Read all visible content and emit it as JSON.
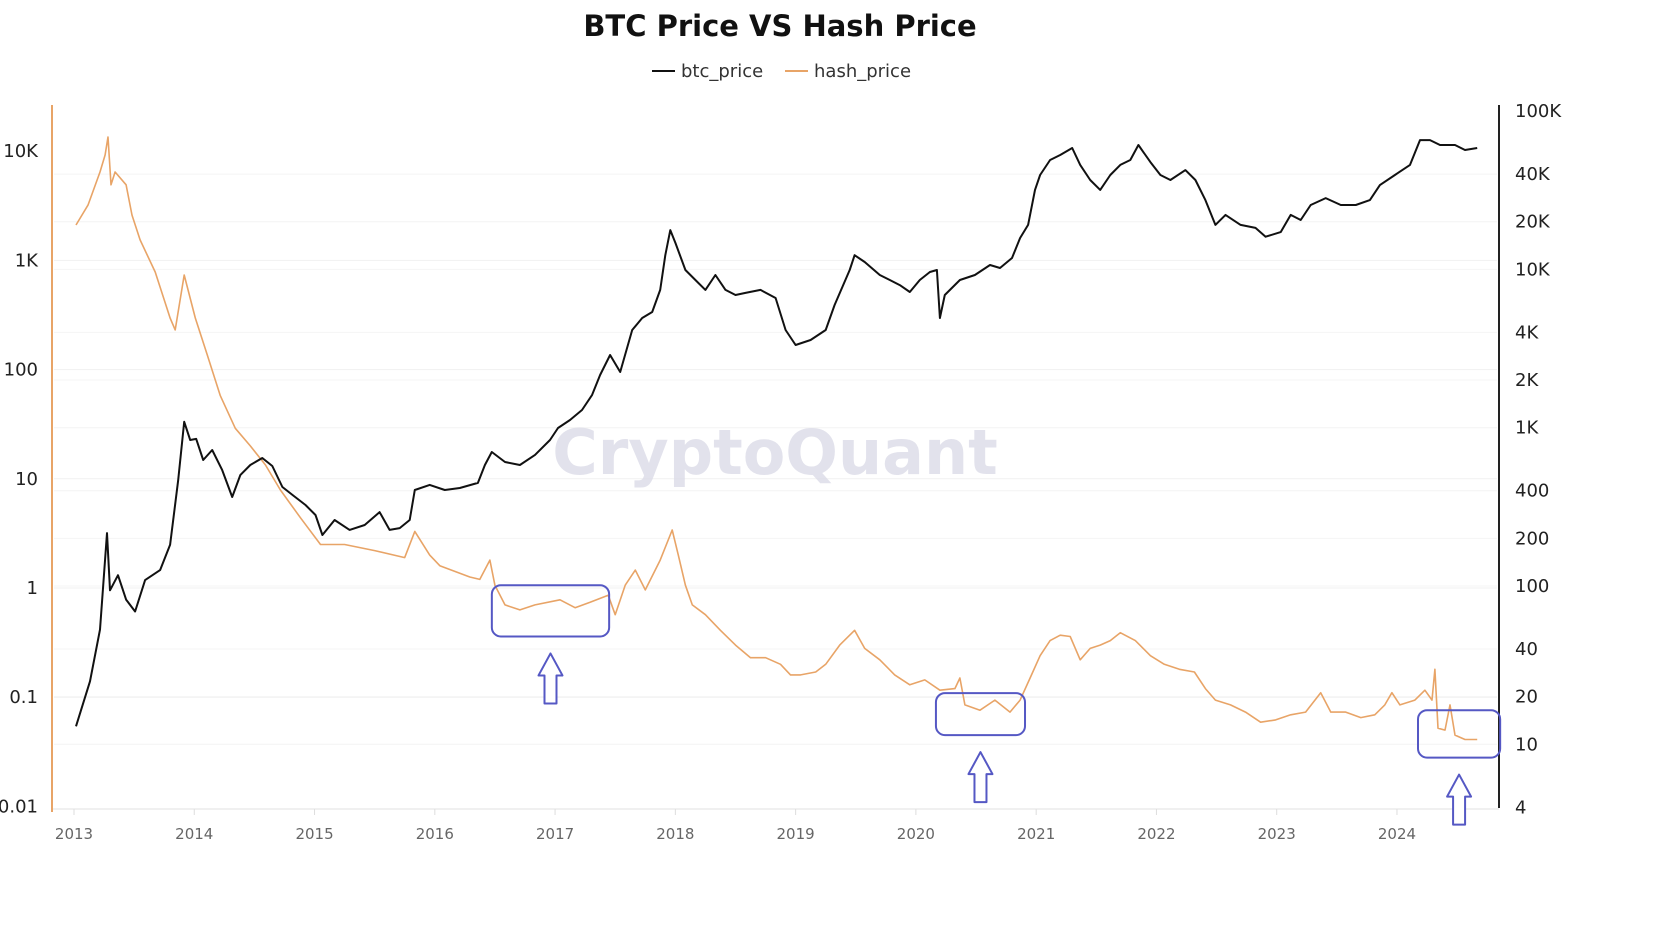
{
  "chart_data": {
    "type": "line",
    "title": "BTC Price VS Hash Price",
    "watermark": "CryptoQuant",
    "legend_position": "top-center",
    "grid": true,
    "x_ticks": [
      "2013",
      "2014",
      "2015",
      "2016",
      "2017",
      "2018",
      "2019",
      "2020",
      "2021",
      "2022",
      "2023",
      "2024"
    ],
    "left_axis": {
      "series": "hash_price",
      "scale": "log",
      "range": [
        0.01,
        27000
      ],
      "color": "#e8a467",
      "ticks": [
        {
          "v": 10000,
          "label": "10K"
        },
        {
          "v": 1000,
          "label": "1K"
        },
        {
          "v": 100,
          "label": "100"
        },
        {
          "v": 10,
          "label": "10"
        },
        {
          "v": 1,
          "label": "1"
        },
        {
          "v": 0.1,
          "label": "0.1"
        },
        {
          "v": 0.01,
          "label": "0.01"
        }
      ]
    },
    "right_axis": {
      "series": "btc_price",
      "scale": "log",
      "range": [
        4,
        100000
      ],
      "color": "#111111",
      "ticks": [
        {
          "v": 100000,
          "label": "100K"
        },
        {
          "v": 40000,
          "label": "40K"
        },
        {
          "v": 20000,
          "label": "20K"
        },
        {
          "v": 10000,
          "label": "10K"
        },
        {
          "v": 4000,
          "label": "4K"
        },
        {
          "v": 2000,
          "label": "2K"
        },
        {
          "v": 1000,
          "label": "1K"
        },
        {
          "v": 400,
          "label": "400"
        },
        {
          "v": 200,
          "label": "200"
        },
        {
          "v": 100,
          "label": "100"
        },
        {
          "v": 40,
          "label": "40"
        },
        {
          "v": 20,
          "label": "20"
        },
        {
          "v": 10,
          "label": "10"
        },
        {
          "v": 4,
          "label": "4"
        }
      ]
    },
    "series": [
      {
        "name": "btc_price",
        "axis": "right",
        "color": "#111111",
        "points": [
          [
            "2013-01-07",
            13
          ],
          [
            "2013-02-19",
            25
          ],
          [
            "2013-03-19",
            53
          ],
          [
            "2013-04-10",
            216
          ],
          [
            "2013-04-19",
            94
          ],
          [
            "2013-05-13",
            117
          ],
          [
            "2013-06-07",
            82
          ],
          [
            "2013-07-04",
            69
          ],
          [
            "2013-08-04",
            109
          ],
          [
            "2013-09-19",
            126
          ],
          [
            "2013-10-19",
            182
          ],
          [
            "2013-11-13",
            467
          ],
          [
            "2013-12-01",
            1090
          ],
          [
            "2013-12-19",
            836
          ],
          [
            "2014-01-07",
            850
          ],
          [
            "2014-01-28",
            625
          ],
          [
            "2014-02-25",
            723
          ],
          [
            "2014-03-25",
            540
          ],
          [
            "2014-04-25",
            365
          ],
          [
            "2014-05-19",
            502
          ],
          [
            "2014-06-19",
            581
          ],
          [
            "2014-07-25",
            644
          ],
          [
            "2014-08-25",
            573
          ],
          [
            "2014-09-25",
            422
          ],
          [
            "2014-10-25",
            376
          ],
          [
            "2014-12-04",
            325
          ],
          [
            "2015-01-04",
            281
          ],
          [
            "2015-01-25",
            210
          ],
          [
            "2015-03-01",
            261
          ],
          [
            "2015-04-16",
            226
          ],
          [
            "2015-06-01",
            243
          ],
          [
            "2015-07-16",
            293
          ],
          [
            "2015-08-16",
            226
          ],
          [
            "2015-09-16",
            232
          ],
          [
            "2015-10-16",
            261
          ],
          [
            "2015-11-01",
            404
          ],
          [
            "2015-12-16",
            435
          ],
          [
            "2016-02-01",
            404
          ],
          [
            "2016-03-16",
            416
          ],
          [
            "2016-05-10",
            448
          ],
          [
            "2016-06-01",
            581
          ],
          [
            "2016-06-22",
            702
          ],
          [
            "2016-08-01",
            607
          ],
          [
            "2016-09-16",
            581
          ],
          [
            "2016-11-01",
            673
          ],
          [
            "2016-12-16",
            836
          ],
          [
            "2017-01-10",
            995
          ],
          [
            "2017-02-16",
            1119
          ],
          [
            "2017-03-22",
            1294
          ],
          [
            "2017-04-22",
            1611
          ],
          [
            "2017-05-16",
            2153
          ],
          [
            "2017-06-16",
            2877
          ],
          [
            "2017-07-16",
            2248
          ],
          [
            "2017-08-22",
            4140
          ],
          [
            "2017-09-22",
            4930
          ],
          [
            "2017-10-22",
            5380
          ],
          [
            "2017-11-16",
            7420
          ],
          [
            "2017-12-01",
            12300
          ],
          [
            "2017-12-16",
            17700
          ],
          [
            "2018-01-01",
            14700
          ],
          [
            "2018-02-01",
            9910
          ],
          [
            "2018-03-01",
            8570
          ],
          [
            "2018-04-01",
            7420
          ],
          [
            "2018-05-01",
            9220
          ],
          [
            "2018-06-01",
            7420
          ],
          [
            "2018-07-01",
            6890
          ],
          [
            "2018-08-01",
            7100
          ],
          [
            "2018-09-16",
            7420
          ],
          [
            "2018-11-01",
            6600
          ],
          [
            "2018-12-01",
            4140
          ],
          [
            "2019-01-01",
            3330
          ],
          [
            "2019-02-16",
            3580
          ],
          [
            "2019-04-01",
            4140
          ],
          [
            "2019-04-28",
            5960
          ],
          [
            "2019-06-13",
            9910
          ],
          [
            "2019-06-28",
            12300
          ],
          [
            "2019-07-28",
            11140
          ],
          [
            "2019-09-13",
            9220
          ],
          [
            "2019-10-13",
            8570
          ],
          [
            "2019-11-13",
            7960
          ],
          [
            "2019-12-13",
            7200
          ],
          [
            "2020-01-13",
            8570
          ],
          [
            "2020-02-13",
            9630
          ],
          [
            "2020-03-04",
            9910
          ],
          [
            "2020-03-13",
            4930
          ],
          [
            "2020-03-28",
            6890
          ],
          [
            "2020-05-13",
            8570
          ],
          [
            "2020-06-28",
            9220
          ],
          [
            "2020-08-13",
            10660
          ],
          [
            "2020-09-13",
            10200
          ],
          [
            "2020-10-19",
            11800
          ],
          [
            "2020-11-13",
            15800
          ],
          [
            "2020-12-07",
            19100
          ],
          [
            "2020-12-28",
            31800
          ],
          [
            "2021-01-13",
            39500
          ],
          [
            "2021-02-13",
            49100
          ],
          [
            "2021-03-13",
            52800
          ],
          [
            "2021-04-19",
            58500
          ],
          [
            "2021-05-13",
            45700
          ],
          [
            "2021-06-13",
            36700
          ],
          [
            "2021-07-13",
            31800
          ],
          [
            "2021-08-13",
            39500
          ],
          [
            "2021-09-13",
            45700
          ],
          [
            "2021-10-13",
            49100
          ],
          [
            "2021-11-07",
            61100
          ],
          [
            "2021-12-13",
            47600
          ],
          [
            "2022-01-13",
            39500
          ],
          [
            "2022-02-13",
            36700
          ],
          [
            "2022-03-28",
            42400
          ],
          [
            "2022-04-28",
            36700
          ],
          [
            "2022-05-28",
            27400
          ],
          [
            "2022-06-28",
            19100
          ],
          [
            "2022-07-28",
            22100
          ],
          [
            "2022-09-13",
            19100
          ],
          [
            "2022-10-28",
            18300
          ],
          [
            "2022-11-28",
            16100
          ],
          [
            "2023-01-13",
            17200
          ],
          [
            "2023-02-13",
            22100
          ],
          [
            "2023-03-13",
            20500
          ],
          [
            "2023-04-13",
            25500
          ],
          [
            "2023-05-28",
            28200
          ],
          [
            "2023-07-13",
            25500
          ],
          [
            "2023-08-28",
            25500
          ],
          [
            "2023-10-10",
            27400
          ],
          [
            "2023-11-10",
            34100
          ],
          [
            "2023-12-25",
            39500
          ],
          [
            "2024-02-10",
            45700
          ],
          [
            "2024-03-10",
            65600
          ],
          [
            "2024-04-10",
            65600
          ],
          [
            "2024-05-10",
            61100
          ],
          [
            "2024-06-25",
            61100
          ],
          [
            "2024-07-25",
            56800
          ],
          [
            "2024-09-01",
            58500
          ]
        ]
      },
      {
        "name": "hash_price",
        "axis": "left",
        "color": "#e8a467",
        "points": [
          [
            "2013-01-07",
            2110
          ],
          [
            "2013-02-13",
            3210
          ],
          [
            "2013-03-19",
            6450
          ],
          [
            "2013-04-04",
            9230
          ],
          [
            "2013-04-13",
            13500
          ],
          [
            "2013-04-22",
            4920
          ],
          [
            "2013-05-04",
            6450
          ],
          [
            "2013-06-07",
            4920
          ],
          [
            "2013-06-25",
            2600
          ],
          [
            "2013-07-19",
            1540
          ],
          [
            "2013-09-04",
            783
          ],
          [
            "2013-10-19",
            297
          ],
          [
            "2013-11-04",
            231
          ],
          [
            "2013-12-01",
            735
          ],
          [
            "2014-01-04",
            297
          ],
          [
            "2014-02-10",
            136
          ],
          [
            "2014-03-19",
            58
          ],
          [
            "2014-05-04",
            29
          ],
          [
            "2014-06-19",
            20
          ],
          [
            "2014-08-04",
            13.4
          ],
          [
            "2014-09-19",
            7.9
          ],
          [
            "2014-11-19",
            4.4
          ],
          [
            "2015-01-19",
            2.5
          ],
          [
            "2015-04-01",
            2.5
          ],
          [
            "2015-07-01",
            2.2
          ],
          [
            "2015-10-01",
            1.9
          ],
          [
            "2015-11-01",
            3.3
          ],
          [
            "2015-12-16",
            2.0
          ],
          [
            "2016-01-16",
            1.6
          ],
          [
            "2016-04-16",
            1.26
          ],
          [
            "2016-05-16",
            1.2
          ],
          [
            "2016-06-16",
            1.8
          ],
          [
            "2016-07-01",
            1.06
          ],
          [
            "2016-08-01",
            0.7
          ],
          [
            "2016-09-16",
            0.63
          ],
          [
            "2016-11-01",
            0.7
          ],
          [
            "2017-01-16",
            0.78
          ],
          [
            "2017-03-01",
            0.66
          ],
          [
            "2017-04-16",
            0.74
          ],
          [
            "2017-06-10",
            0.86
          ],
          [
            "2017-07-01",
            0.57
          ],
          [
            "2017-08-01",
            1.06
          ],
          [
            "2017-09-01",
            1.46
          ],
          [
            "2017-10-01",
            0.96
          ],
          [
            "2017-11-16",
            1.8
          ],
          [
            "2017-12-22",
            3.4
          ],
          [
            "2018-01-10",
            2.0
          ],
          [
            "2018-02-01",
            1.06
          ],
          [
            "2018-02-22",
            0.7
          ],
          [
            "2018-04-01",
            0.57
          ],
          [
            "2018-05-16",
            0.41
          ],
          [
            "2018-07-01",
            0.3
          ],
          [
            "2018-08-16",
            0.23
          ],
          [
            "2018-10-01",
            0.23
          ],
          [
            "2018-11-16",
            0.2
          ],
          [
            "2018-12-16",
            0.16
          ],
          [
            "2019-01-16",
            0.16
          ],
          [
            "2019-03-01",
            0.17
          ],
          [
            "2019-04-01",
            0.2
          ],
          [
            "2019-05-13",
            0.3
          ],
          [
            "2019-06-28",
            0.41
          ],
          [
            "2019-07-28",
            0.28
          ],
          [
            "2019-09-13",
            0.22
          ],
          [
            "2019-10-28",
            0.16
          ],
          [
            "2019-12-13",
            0.13
          ],
          [
            "2020-01-28",
            0.144
          ],
          [
            "2020-03-13",
            0.116
          ],
          [
            "2020-04-28",
            0.12
          ],
          [
            "2020-05-13",
            0.15
          ],
          [
            "2020-05-28",
            0.085
          ],
          [
            "2020-07-13",
            0.076
          ],
          [
            "2020-08-28",
            0.094
          ],
          [
            "2020-10-13",
            0.073
          ],
          [
            "2020-11-13",
            0.094
          ],
          [
            "2020-12-13",
            0.15
          ],
          [
            "2021-01-13",
            0.24
          ],
          [
            "2021-02-13",
            0.33
          ],
          [
            "2021-03-13",
            0.37
          ],
          [
            "2021-04-13",
            0.36
          ],
          [
            "2021-05-13",
            0.22
          ],
          [
            "2021-06-13",
            0.28
          ],
          [
            "2021-07-13",
            0.3
          ],
          [
            "2021-08-13",
            0.33
          ],
          [
            "2021-09-13",
            0.39
          ],
          [
            "2021-10-28",
            0.33
          ],
          [
            "2021-12-13",
            0.24
          ],
          [
            "2022-01-25",
            0.2
          ],
          [
            "2022-03-10",
            0.18
          ],
          [
            "2022-04-25",
            0.17
          ],
          [
            "2022-05-28",
            0.12
          ],
          [
            "2022-06-28",
            0.094
          ],
          [
            "2022-08-13",
            0.085
          ],
          [
            "2022-09-28",
            0.073
          ],
          [
            "2022-11-13",
            0.059
          ],
          [
            "2022-12-28",
            0.062
          ],
          [
            "2023-02-13",
            0.069
          ],
          [
            "2023-03-28",
            0.073
          ],
          [
            "2023-05-13",
            0.11
          ],
          [
            "2023-06-13",
            0.073
          ],
          [
            "2023-07-28",
            0.073
          ],
          [
            "2023-09-13",
            0.065
          ],
          [
            "2023-10-25",
            0.069
          ],
          [
            "2023-11-25",
            0.085
          ],
          [
            "2023-12-16",
            0.11
          ],
          [
            "2024-01-10",
            0.085
          ],
          [
            "2024-02-25",
            0.094
          ],
          [
            "2024-03-25",
            0.116
          ],
          [
            "2024-04-16",
            0.094
          ],
          [
            "2024-04-25",
            0.18
          ],
          [
            "2024-05-04",
            0.052
          ],
          [
            "2024-05-25",
            0.05
          ],
          [
            "2024-06-10",
            0.085
          ],
          [
            "2024-06-25",
            0.045
          ],
          [
            "2024-07-25",
            0.041
          ],
          [
            "2024-09-01",
            0.041
          ]
        ]
      }
    ],
    "annotations": {
      "color": "#5558c4",
      "highlight_boxes": [
        {
          "from": "2016-06-22",
          "to": "2017-06-13",
          "hash_high": 1.06,
          "hash_low": 0.36
        },
        {
          "from": "2020-03-01",
          "to": "2020-11-28",
          "hash_high": 0.109,
          "hash_low": 0.045
        },
        {
          "from": "2024-03-04",
          "to": "2024-11-10",
          "hash_high": 0.076,
          "hash_low": 0.028
        }
      ]
    }
  }
}
